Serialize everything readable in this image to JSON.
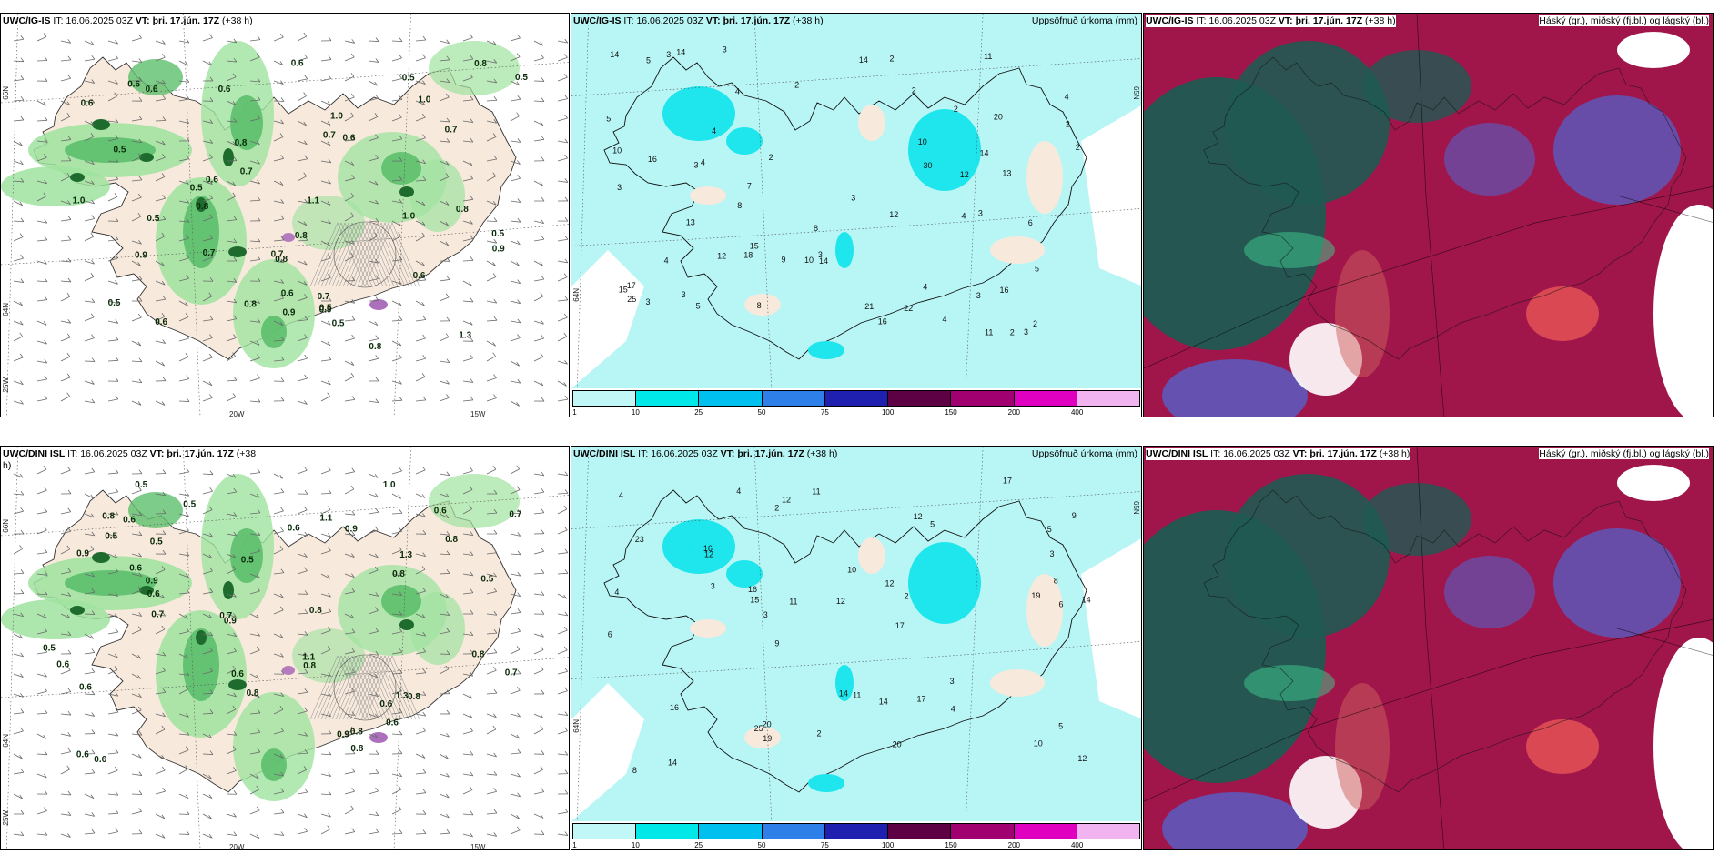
{
  "panels": {
    "tl": {
      "model": "UWC/IG-IS",
      "it_label": "IT:",
      "it": "16.06.2025 03Z",
      "vt_label": "VT:",
      "vt": "þri. 17.jún. 17Z",
      "lead": "(+38 h)"
    },
    "tm": {
      "model": "UWC/IG-IS",
      "it_label": "IT:",
      "it": "16.06.2025 03Z",
      "vt_label": "VT:",
      "vt": "þri. 17.jún. 17Z",
      "lead": "(+38 h)",
      "right_title": "Uppsöfnuð úrkoma (mm)"
    },
    "tr": {
      "model": "UWC/IG-IS",
      "it_label": "IT:",
      "it": "16.06.2025 03Z",
      "vt_label": "VT:",
      "vt": "þri. 17.jún. 17Z",
      "lead": "(+38 h)",
      "right_title": "Háský (gr.), miðský (fj.bl.) og lágský (bl.)"
    },
    "bl": {
      "model": "UWC/DINI ISL",
      "it_label": "IT:",
      "it": "16.06.2025 03Z",
      "vt_label": "VT:",
      "vt": "þri. 17.jún. 17Z",
      "lead": "(+38",
      "lead2": "h)"
    },
    "bm": {
      "model": "UWC/DINI ISL",
      "it_label": "IT:",
      "it": "16.06.2025 03Z",
      "vt_label": "VT:",
      "vt": "þri. 17.jún. 17Z",
      "lead": "(+38 h)",
      "right_title": "Uppsöfnuð úrkoma (mm)"
    },
    "br": {
      "model": "UWC/DINI ISL",
      "it_label": "IT:",
      "it": "16.06.2025 03Z",
      "vt_label": "VT:",
      "vt": "þri. 17.jún. 17Z",
      "lead": "(+38 h)",
      "right_title": "Háský (gr.), miðský (fj.bl.) og lágský (bl.)"
    }
  },
  "axis_labels": {
    "lat66": "66N",
    "lat64": "64N",
    "lon25": "25W",
    "lon20": "20W",
    "lon15": "15W",
    "lat65r": "65N",
    "lat64r": "64N"
  },
  "colorbar": {
    "ticks": [
      "1",
      "10",
      "25",
      "50",
      "75",
      "100",
      "150",
      "200",
      "400"
    ],
    "colors": [
      "#c2f7f7",
      "#00e8e8",
      "#00c0f0",
      "#2e7fe8",
      "#2020b0",
      "#5e0044",
      "#a00070",
      "#e000c0",
      "#f2b4f0"
    ]
  },
  "colors": {
    "land": "#f7e9dc",
    "precip_light": "#b8f5f5",
    "precip_mid": "#1ee6ec",
    "green_light": "#9fe39f",
    "green_mid": "#5cbf6c",
    "green_dark": "#1e6b2e",
    "cloud_high": "#a0164a",
    "cloud_mid": "#1f5a52",
    "cloud_low": "#5660c8"
  },
  "precip_top": {
    "numbers": [
      "8",
      "3",
      "3",
      "3",
      "3",
      "4",
      "10",
      "8",
      "18",
      "12",
      "13",
      "14",
      "14",
      "11",
      "7",
      "4",
      "3",
      "2",
      "4",
      "2",
      "2",
      "4",
      "22",
      "12",
      "16",
      "30",
      "21",
      "17",
      "20",
      "15",
      "15",
      "9",
      "3",
      "5",
      "2",
      "10",
      "16",
      "14",
      "13",
      "8",
      "3",
      "2",
      "6",
      "4",
      "14",
      "25",
      "3",
      "4",
      "3",
      "2",
      "16",
      "14",
      "12",
      "11",
      "2",
      "10",
      "5",
      "5",
      "4",
      "3",
      "2",
      "2",
      "5",
      "4",
      "3"
    ]
  },
  "precip_bottom": {
    "numbers": [
      "8",
      "5",
      "4",
      "3",
      "3",
      "2",
      "17",
      "12",
      "11",
      "11",
      "12",
      "6",
      "15",
      "20",
      "14",
      "25",
      "23",
      "17",
      "19",
      "16",
      "14",
      "16",
      "10",
      "11",
      "9",
      "20",
      "17",
      "14",
      "12",
      "12",
      "12",
      "19",
      "16",
      "10",
      "6",
      "5",
      "3",
      "4",
      "2",
      "4",
      "4",
      "8",
      "14",
      "12",
      "3",
      "2",
      "9",
      "5"
    ]
  },
  "green_top": {
    "numbers": [
      "0.7",
      "1.0",
      "0.6",
      "1.0",
      "0.8",
      "0.5",
      "0.6",
      "0.8",
      "0.6",
      "0.6",
      "0.5",
      "1.1",
      "1.3",
      "0.6",
      "0.8",
      "1.0",
      "0.6",
      "0.8",
      "0.5",
      "0.5",
      "0.9",
      "0.7",
      "0.8",
      "0.9",
      "0.5",
      "1.0",
      "0.8",
      "0.7",
      "0.7",
      "0.6",
      "0.5",
      "0.9",
      "0.5",
      "0.7",
      "0.6",
      "0.8",
      "0.8",
      "0.9",
      "0.5",
      "0.6",
      "0.6",
      "0.7",
      "0.5"
    ]
  },
  "green_bottom": {
    "numbers": [
      "0.7",
      "0.6",
      "0.5",
      "0.7",
      "1.3",
      "0.5",
      "1.0",
      "0.5",
      "0.8",
      "1.3",
      "0.6",
      "0.6",
      "0.8",
      "0.6",
      "0.5",
      "0.8",
      "0.5",
      "0.6",
      "0.8",
      "0.6",
      "0.5",
      "0.7",
      "1.1",
      "0.6",
      "0.8",
      "0.9",
      "0.6",
      "0.6",
      "0.8",
      "0.6",
      "0.9",
      "0.7",
      "0.6",
      "0.9",
      "0.8",
      "0.8",
      "0.8",
      "0.9",
      "1.1",
      "0.9",
      "0.6",
      "0.8",
      "0.5"
    ]
  }
}
